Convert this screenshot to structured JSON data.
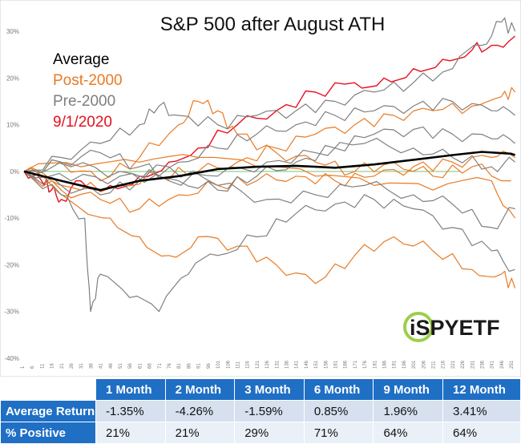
{
  "chart_data": {
    "type": "line",
    "title": "S&P 500 after August ATH",
    "ylim": [
      -40,
      35
    ],
    "y_ticks": [
      "30%",
      "20%",
      "10%",
      "0%",
      "-10%",
      "-20%",
      "-30%",
      "-40%"
    ],
    "x_ticks": [
      "1",
      "6",
      "11",
      "16",
      "21",
      "26",
      "31",
      "36",
      "41",
      "46",
      "51",
      "56",
      "61",
      "66",
      "71",
      "76",
      "81",
      "86",
      "91",
      "96",
      "101",
      "106",
      "111",
      "116",
      "121",
      "126",
      "131",
      "136",
      "141",
      "146",
      "151",
      "156",
      "161",
      "166",
      "171",
      "176",
      "181",
      "186",
      "191",
      "196",
      "201",
      "206",
      "211",
      "216",
      "221",
      "226",
      "231",
      "236",
      "241",
      "246",
      "251"
    ],
    "legend": [
      {
        "label": "Average",
        "color": "#000000"
      },
      {
        "label": "Post-2000",
        "color": "#e87a24"
      },
      {
        "label": "Pre-2000",
        "color": "#7f7f7f"
      },
      {
        "label": "9/1/2020",
        "color": "#e8101e"
      }
    ],
    "series": [
      {
        "name": "Average",
        "color": "#000000",
        "width": 2.6,
        "points": [
          [
            1,
            0
          ],
          [
            20,
            -2
          ],
          [
            40,
            -4
          ],
          [
            60,
            -2
          ],
          [
            80,
            -1
          ],
          [
            100,
            0.5
          ],
          [
            120,
            1
          ],
          [
            140,
            1.2
          ],
          [
            160,
            0.8
          ],
          [
            180,
            1.5
          ],
          [
            200,
            2.5
          ],
          [
            220,
            3.5
          ],
          [
            235,
            4.2
          ],
          [
            250,
            3.8
          ],
          [
            252,
            3.5
          ]
        ]
      },
      {
        "name": "9/1/2020",
        "color": "#e8101e",
        "width": 1.4,
        "points": [
          [
            1,
            0
          ],
          [
            10,
            -2
          ],
          [
            15,
            -4
          ],
          [
            20,
            -6
          ],
          [
            30,
            -2
          ],
          [
            45,
            -3
          ],
          [
            60,
            -1
          ],
          [
            75,
            2
          ],
          [
            90,
            5
          ],
          [
            110,
            10
          ],
          [
            130,
            13
          ],
          [
            150,
            17
          ],
          [
            170,
            19
          ],
          [
            185,
            20
          ],
          [
            200,
            22
          ],
          [
            215,
            24
          ],
          [
            230,
            26
          ],
          [
            240,
            27
          ],
          [
            252,
            29
          ]
        ]
      },
      {
        "name": "",
        "color": "#e87a24",
        "width": 1.2,
        "points": [
          [
            1,
            0
          ],
          [
            15,
            -3
          ],
          [
            30,
            -8
          ],
          [
            45,
            -10
          ],
          [
            60,
            -14
          ],
          [
            75,
            -18
          ],
          [
            90,
            -14
          ],
          [
            110,
            -16
          ],
          [
            130,
            -20
          ],
          [
            150,
            -24
          ],
          [
            170,
            -18
          ],
          [
            190,
            -14
          ],
          [
            210,
            -17
          ],
          [
            230,
            -21
          ],
          [
            245,
            -22
          ],
          [
            252,
            -25
          ]
        ]
      },
      {
        "name": "",
        "color": "#e87a24",
        "width": 1.2,
        "points": [
          [
            1,
            0
          ],
          [
            15,
            -2
          ],
          [
            30,
            -4
          ],
          [
            50,
            -3
          ],
          [
            70,
            -1
          ],
          [
            90,
            0
          ],
          [
            110,
            2
          ],
          [
            130,
            5
          ],
          [
            150,
            8
          ],
          [
            170,
            10
          ],
          [
            190,
            12
          ],
          [
            210,
            13
          ],
          [
            230,
            14
          ],
          [
            245,
            16
          ],
          [
            252,
            17
          ]
        ]
      },
      {
        "name": "",
        "color": "#e87a24",
        "width": 1.2,
        "points": [
          [
            1,
            0
          ],
          [
            20,
            2
          ],
          [
            40,
            -2
          ],
          [
            60,
            3
          ],
          [
            80,
            10
          ],
          [
            90,
            15
          ],
          [
            100,
            13
          ],
          [
            110,
            8
          ],
          [
            130,
            4
          ],
          [
            150,
            2
          ],
          [
            170,
            0
          ],
          [
            190,
            2
          ],
          [
            210,
            -1
          ],
          [
            230,
            1
          ],
          [
            250,
            -2
          ]
        ]
      },
      {
        "name": "",
        "color": "#e87a24",
        "width": 1.2,
        "points": [
          [
            1,
            0
          ],
          [
            20,
            -4
          ],
          [
            40,
            -6
          ],
          [
            60,
            -8
          ],
          [
            80,
            -5
          ],
          [
            100,
            -3
          ],
          [
            120,
            -2
          ],
          [
            140,
            -1
          ],
          [
            160,
            -2
          ],
          [
            180,
            -1
          ],
          [
            200,
            1
          ],
          [
            220,
            2
          ],
          [
            240,
            3
          ],
          [
            252,
            3
          ]
        ]
      },
      {
        "name": "",
        "color": "#e87a24",
        "width": 1.2,
        "points": [
          [
            1,
            0
          ],
          [
            30,
            1
          ],
          [
            60,
            2
          ],
          [
            90,
            3
          ],
          [
            120,
            1
          ],
          [
            150,
            -1
          ],
          [
            180,
            -3
          ],
          [
            210,
            -4
          ],
          [
            240,
            -2
          ],
          [
            252,
            -10
          ]
        ]
      },
      {
        "name": "",
        "color": "#7f7f7f",
        "width": 1.2,
        "points": [
          [
            1,
            0
          ],
          [
            20,
            -5
          ],
          [
            32,
            -10
          ],
          [
            35,
            -30
          ],
          [
            40,
            -22
          ],
          [
            55,
            -27
          ],
          [
            70,
            -30
          ],
          [
            85,
            -22
          ],
          [
            100,
            -18
          ],
          [
            120,
            -14
          ],
          [
            140,
            -9
          ],
          [
            160,
            -7
          ],
          [
            180,
            -6
          ],
          [
            200,
            -8
          ],
          [
            220,
            -12
          ],
          [
            240,
            -17
          ],
          [
            252,
            -21
          ]
        ]
      },
      {
        "name": "",
        "color": "#7f7f7f",
        "width": 1.2,
        "points": [
          [
            1,
            0
          ],
          [
            20,
            3
          ],
          [
            40,
            6
          ],
          [
            60,
            10
          ],
          [
            70,
            14
          ],
          [
            80,
            12
          ],
          [
            100,
            10
          ],
          [
            120,
            12
          ],
          [
            140,
            13
          ],
          [
            160,
            15
          ],
          [
            180,
            17
          ],
          [
            200,
            19
          ],
          [
            220,
            22
          ],
          [
            235,
            27
          ],
          [
            245,
            32
          ],
          [
            252,
            30
          ]
        ]
      },
      {
        "name": "",
        "color": "#7f7f7f",
        "width": 1.2,
        "points": [
          [
            1,
            0
          ],
          [
            20,
            -3
          ],
          [
            40,
            -5
          ],
          [
            60,
            -2
          ],
          [
            80,
            2
          ],
          [
            100,
            5
          ],
          [
            120,
            8
          ],
          [
            140,
            10
          ],
          [
            160,
            12
          ],
          [
            180,
            13
          ],
          [
            200,
            14
          ],
          [
            220,
            15
          ],
          [
            240,
            13
          ],
          [
            252,
            12
          ]
        ]
      },
      {
        "name": "",
        "color": "#7f7f7f",
        "width": 1.2,
        "points": [
          [
            1,
            0
          ],
          [
            20,
            2
          ],
          [
            40,
            4
          ],
          [
            60,
            1
          ],
          [
            80,
            -2
          ],
          [
            100,
            -4
          ],
          [
            120,
            -1
          ],
          [
            140,
            2
          ],
          [
            160,
            5
          ],
          [
            180,
            8
          ],
          [
            200,
            9
          ],
          [
            220,
            8
          ],
          [
            240,
            7
          ],
          [
            252,
            6
          ]
        ]
      },
      {
        "name": "",
        "color": "#7f7f7f",
        "width": 1.2,
        "points": [
          [
            1,
            0
          ],
          [
            25,
            -2
          ],
          [
            50,
            -1
          ],
          [
            75,
            1
          ],
          [
            100,
            -3
          ],
          [
            125,
            -6
          ],
          [
            150,
            -5
          ],
          [
            175,
            -3
          ],
          [
            200,
            -5
          ],
          [
            220,
            -7
          ],
          [
            240,
            -12
          ],
          [
            252,
            -8
          ]
        ]
      },
      {
        "name": "",
        "color": "#7f7f7f",
        "width": 1.2,
        "points": [
          [
            1,
            0
          ],
          [
            25,
            1
          ],
          [
            50,
            0
          ],
          [
            75,
            -2
          ],
          [
            100,
            -1
          ],
          [
            125,
            2
          ],
          [
            150,
            4
          ],
          [
            175,
            6
          ],
          [
            200,
            5
          ],
          [
            220,
            3
          ],
          [
            240,
            1
          ],
          [
            252,
            2
          ]
        ]
      }
    ]
  },
  "logo": {
    "text": "iSPYETF"
  },
  "table": {
    "headers": [
      "",
      "1 Month",
      "2 Month",
      "3 Month",
      "6 Month",
      "9 Month",
      "12 Month"
    ],
    "rows": [
      {
        "label": "Average Return",
        "values": [
          "-1.35%",
          "-4.26%",
          "-1.59%",
          "0.85%",
          "1.96%",
          "3.41%"
        ]
      },
      {
        "label": "% Positive",
        "values": [
          "21%",
          "21%",
          "29%",
          "71%",
          "64%",
          "64%"
        ]
      }
    ]
  }
}
